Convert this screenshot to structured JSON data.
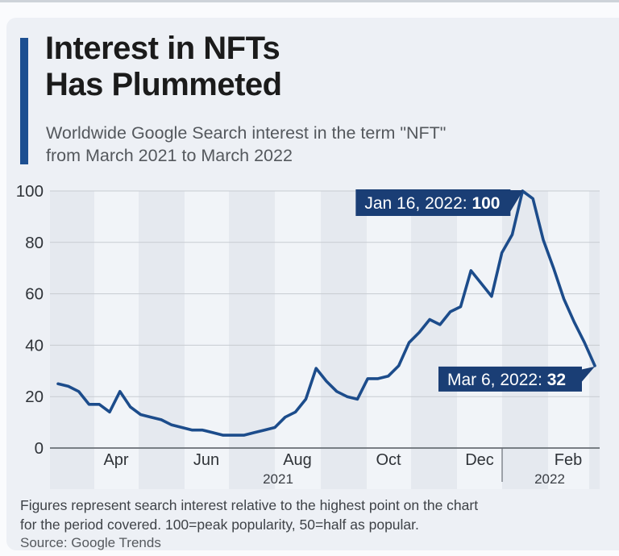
{
  "header": {
    "title_line1": "Interest in NFTs",
    "title_line2": "Has Plummeted",
    "subtitle_line1": "Worldwide Google Search interest in the term \"NFT\"",
    "subtitle_line2": "from March 2021 to March 2022"
  },
  "chart_data": {
    "type": "line",
    "series_name": "Google Search interest for \"NFT\"",
    "interval": "weekly",
    "x_start": "Mar 7, 2021",
    "x_end": "Mar 6, 2022",
    "values": [
      25,
      24,
      22,
      17,
      17,
      14,
      22,
      16,
      13,
      12,
      11,
      9,
      8,
      7,
      7,
      6,
      5,
      5,
      5,
      6,
      7,
      8,
      12,
      14,
      19,
      31,
      26,
      22,
      20,
      19,
      27,
      27,
      28,
      32,
      41,
      45,
      50,
      48,
      53,
      55,
      69,
      64,
      59,
      76,
      83,
      100,
      97,
      81,
      70,
      58,
      49,
      41,
      32
    ],
    "ylim": [
      0,
      100
    ],
    "y_ticks": [
      0,
      20,
      40,
      60,
      80,
      100
    ],
    "x_tick_labels": [
      "Apr",
      "Jun",
      "Aug",
      "Oct",
      "Dec",
      "Feb"
    ],
    "year_labels": [
      "2021",
      "2022"
    ],
    "annotations": [
      {
        "id": "peak",
        "label": "Jan 16, 2022:",
        "value": "100"
      },
      {
        "id": "end",
        "label": "Mar 6, 2022:",
        "value": "32"
      }
    ],
    "grid": true,
    "legend": false
  },
  "footer": {
    "note_line1": "Figures represent search interest relative to the highest point on the chart",
    "note_line2": "for the period covered. 100=peak popularity, 50=half as popular.",
    "source": "Source: Google Trends"
  },
  "colors": {
    "accent_blue": "#1d4f91",
    "line_blue": "#1c4c8b",
    "annotation_bg": "#1a3e75",
    "annotation_text": "#ffffff",
    "card_bg": "#edf0f5",
    "band_dark": "#e5e9ef",
    "band_light": "#f1f4f8",
    "grid_gray": "#c7cbd1",
    "axis_gray": "#696e75",
    "tick_text": "#2f3338",
    "title_text": "#1b1b1b",
    "subtitle_text": "#54585d",
    "note_text": "#3e4247"
  }
}
